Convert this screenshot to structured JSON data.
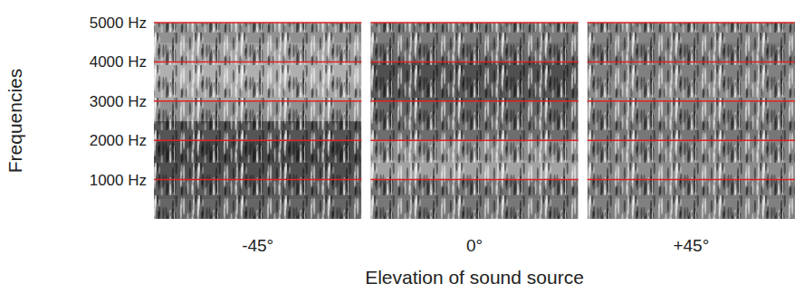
{
  "chart_data": {
    "type": "heatmap",
    "x_label": "Elevation of sound source",
    "y_label": "Frequencies",
    "categories": [
      "-45°",
      "0°",
      "+45°"
    ],
    "y_bins": [
      0,
      500,
      1000,
      1500,
      2000,
      2500,
      3000,
      3500,
      4000,
      4500,
      5000
    ],
    "cells": [
      [
        0.38,
        0.34,
        0.28,
        0.24,
        0.3,
        0.58,
        0.68,
        0.72,
        0.66,
        0.58
      ],
      [
        0.46,
        0.44,
        0.66,
        0.58,
        0.42,
        0.38,
        0.32,
        0.28,
        0.42,
        0.48
      ],
      [
        0.5,
        0.48,
        0.56,
        0.52,
        0.46,
        0.5,
        0.56,
        0.5,
        0.48,
        0.52
      ]
    ],
    "zlim": [
      0,
      1
    ],
    "ylim": [
      0,
      5000
    ],
    "yticks": [
      {
        "value": 1000,
        "label": "1000 Hz"
      },
      {
        "value": 2000,
        "label": "2000 Hz"
      },
      {
        "value": 3000,
        "label": "3000 Hz"
      },
      {
        "value": 4000,
        "label": "4000 Hz"
      },
      {
        "value": 5000,
        "label": "5000 Hz"
      }
    ],
    "grid": true,
    "color": "#e02020"
  }
}
